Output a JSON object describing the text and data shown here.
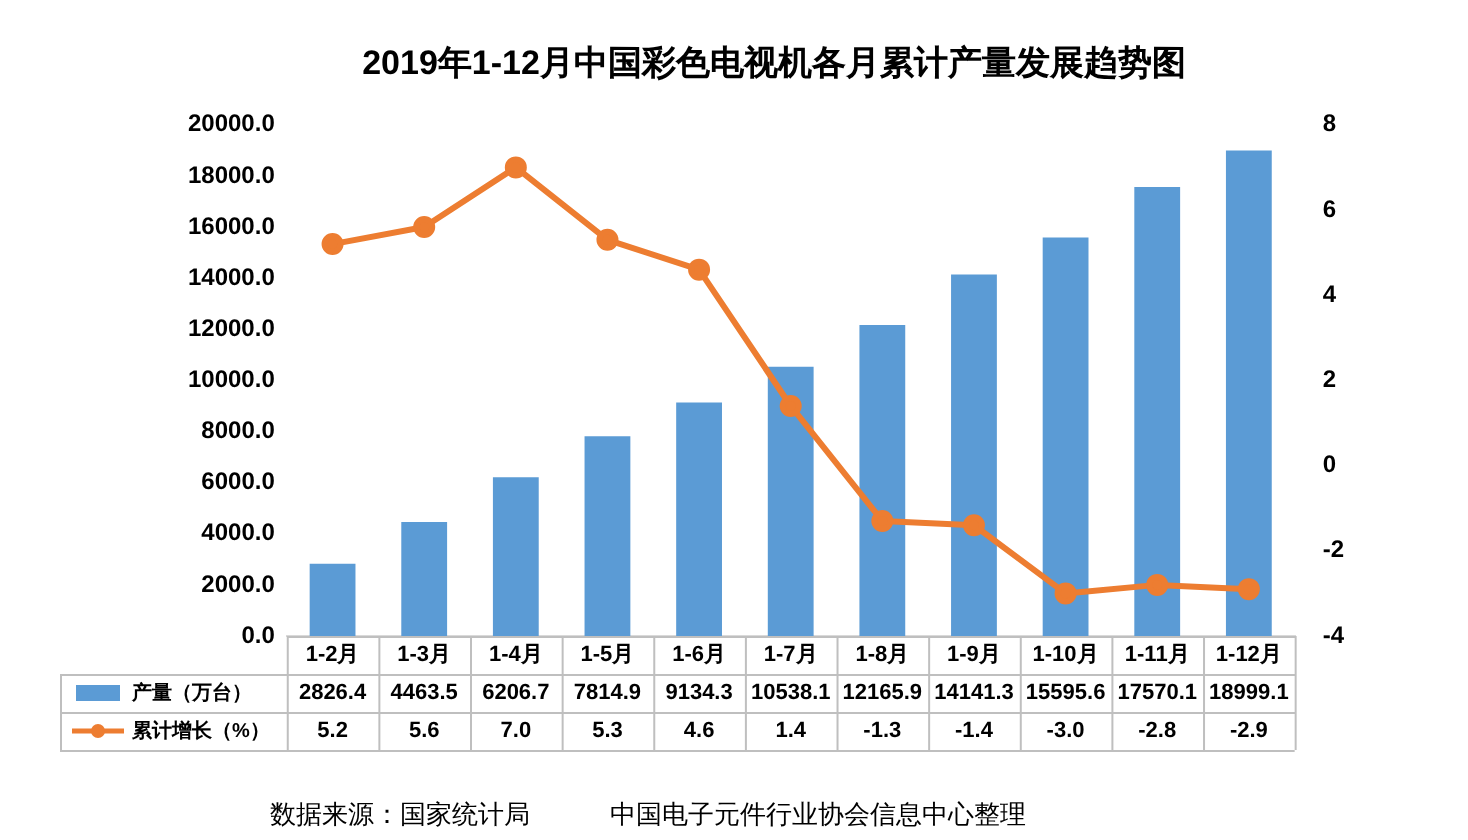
{
  "chart_data": {
    "type": "bar",
    "title": "2019年1-12月中国彩色电视机各月累计产量发展趋势图",
    "categories": [
      "1-2月",
      "1-3月",
      "1-4月",
      "1-5月",
      "1-6月",
      "1-7月",
      "1-8月",
      "1-9月",
      "1-10月",
      "1-11月",
      "1-12月"
    ],
    "series": [
      {
        "name": "产量（万台）",
        "color": "#5b9bd5",
        "values": [
          2826.4,
          4463.5,
          6206.7,
          7814.9,
          9134.3,
          10538.1,
          12165.9,
          14141.3,
          15595.6,
          17570.1,
          18999.1
        ],
        "value_labels": [
          "2826.4",
          "4463.5",
          "6206.7",
          "7814.9",
          "9134.3",
          "10538.1",
          "12165.9",
          "14141.3",
          "15595.6",
          "17570.1",
          "18999.1"
        ]
      },
      {
        "name": "累计增长（%）",
        "type": "line",
        "axis": "y2",
        "color": "#ed7d31",
        "marker": "circle",
        "values": [
          5.2,
          5.6,
          7.0,
          5.3,
          4.6,
          1.4,
          -1.3,
          -1.4,
          -3.0,
          -2.8,
          -2.9
        ],
        "value_labels": [
          "5.2",
          "5.6",
          "7.0",
          "5.3",
          "4.6",
          "1.4",
          "-1.3",
          "-1.4",
          "-3.0",
          "-2.8",
          "-2.9"
        ]
      }
    ],
    "ylim": [
      0,
      20000
    ],
    "yticks": [
      {
        "value": 0,
        "label": "0.0"
      },
      {
        "value": 2000,
        "label": "2000.0"
      },
      {
        "value": 4000,
        "label": "4000.0"
      },
      {
        "value": 6000,
        "label": "6000.0"
      },
      {
        "value": 8000,
        "label": "8000.0"
      },
      {
        "value": 10000,
        "label": "10000.0"
      },
      {
        "value": 12000,
        "label": "12000.0"
      },
      {
        "value": 14000,
        "label": "14000.0"
      },
      {
        "value": 16000,
        "label": "16000.0"
      },
      {
        "value": 18000,
        "label": "18000.0"
      },
      {
        "value": 20000,
        "label": "20000.0"
      }
    ],
    "y2lim": [
      -4,
      8
    ],
    "y2ticks": [
      -4,
      -2,
      0,
      2,
      4,
      6,
      8
    ],
    "grid": false,
    "legend": "bottom",
    "annotations": [
      "数据来源：国家统计局",
      "中国电子元件行业协会信息中心整理"
    ]
  }
}
